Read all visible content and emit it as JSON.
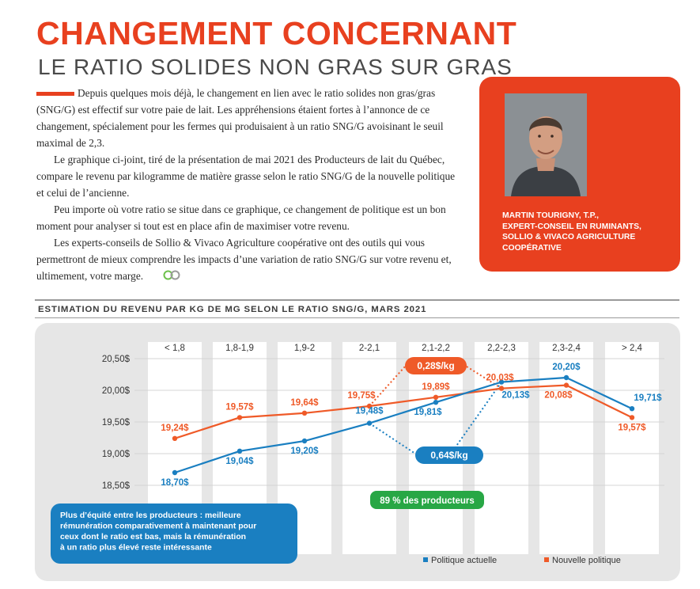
{
  "header": {
    "title": "CHANGEMENT CONCERNANT",
    "subtitle": "LE RATIO SOLIDES NON GRAS SUR GRAS"
  },
  "article": {
    "p1": "Depuis quelques mois déjà, le changement en lien avec le ratio solides non gras/gras (SNG/G) est effectif sur votre paie de lait. Les appréhensions étaient fortes à l’annonce de ce changement, spécialement pour les fermes qui produisaient à un ratio SNG/G avoisinant le seuil maximal de 2,3.",
    "p2": "Le graphique ci-joint, tiré de la présentation de mai 2021 des Producteurs de lait du Québec, compare le revenu par kilogramme de matière grasse selon le ratio SNG/G de la nouvelle politique et celui de l’ancienne.",
    "p3": "Peu importe où votre ratio se situe dans ce graphique, ce changement de politique est un bon moment pour analyser si tout est en place afin de maximiser votre revenu.",
    "p4": "Les experts-conseils de Sollio & Vivaco Agriculture coopérative ont des outils qui vous permettront de mieux comprendre les impacts d’une variation de ratio SNG/G sur votre revenu et, ultimement, votre marge."
  },
  "author": {
    "line1": "MARTIN TOURIGNY, T.P.,",
    "line2": "EXPERT-CONSEIL EN RUMINANTS,",
    "line3": "SOLLIO & VIVACO AGRICULTURE",
    "line4": "COOPÉRATIVE"
  },
  "chart_heading": "ESTIMATION DU REVENU PAR KG DE MG SELON LE RATIO SNG/G, MARS 2021",
  "colors": {
    "accent": "#e8401f",
    "blue": "#1a7fc1",
    "orange": "#ef5a28",
    "green": "#28a745"
  },
  "chart_data": {
    "type": "line",
    "title": "ESTIMATION DU REVENU PAR KG DE MG SELON LE RATIO SNG/G, MARS 2021",
    "categories": [
      "< 1,8",
      "1,8-1,9",
      "1,9-2",
      "2-2,1",
      "2,1-2,2",
      "2,2-2,3",
      "2,3-2,4",
      "> 2,4"
    ],
    "y_ticks": [
      "20,50$",
      "20,00$",
      "19,50$",
      "19,00$",
      "18,50$"
    ],
    "ylim": [
      18.5,
      20.5
    ],
    "series": [
      {
        "name": "Politique actuelle",
        "color": "#1a7fc1",
        "values": [
          18.7,
          19.04,
          19.2,
          19.48,
          19.81,
          20.13,
          20.2,
          19.71
        ],
        "labels": [
          "18,70$",
          "19,04$",
          "19,20$",
          "19,48$",
          "19,81$",
          "20,13$",
          "20,20$",
          "19,71$"
        ]
      },
      {
        "name": "Nouvelle politique",
        "color": "#ef5a28",
        "values": [
          19.24,
          19.57,
          19.64,
          19.75,
          19.89,
          20.03,
          20.08,
          19.57
        ],
        "labels": [
          "19,24$",
          "19,57$",
          "19,64$",
          "19,75$",
          "19,89$",
          "20,03$",
          "20,08$",
          "19,57$"
        ]
      }
    ],
    "annotations": {
      "orange_badge": "0,28$/kg",
      "blue_badge": "0,64$/kg",
      "green_badge": "89 % des producteurs",
      "info_box": [
        "Plus d’équité entre les producteurs : meilleure",
        "rémunération comparativement à maintenant pour",
        "ceux dont le ratio est bas, mais la rémunération",
        "à un ratio plus élevé reste intéressante"
      ]
    },
    "legend_position": "bottom-right",
    "grid": true
  }
}
